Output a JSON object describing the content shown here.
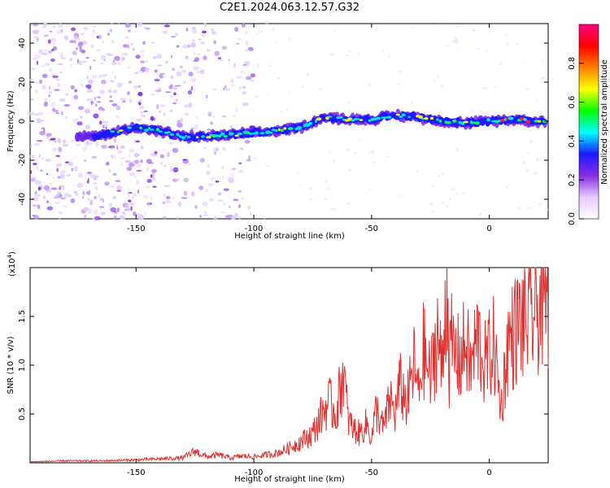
{
  "title": "C2E1.2024.063.12.57.G32",
  "chart_data": [
    {
      "type": "heatmap",
      "xlabel": "Height of straight line (km)",
      "ylabel": "Frequency (Hz)",
      "xlim": [
        -195,
        25
      ],
      "ylim": [
        -50,
        50
      ],
      "x_ticks": [
        -150,
        -100,
        -50,
        0
      ],
      "y_ticks": [
        -40,
        -20,
        0,
        20,
        40
      ],
      "colorbar": {
        "label": "Normalized spectral amplitude",
        "range": [
          0,
          1
        ],
        "ticks": [
          "0.0",
          "0.2",
          "0.4",
          "0.6",
          "0.8"
        ],
        "colors": [
          "#ffffff",
          "#e6ccff",
          "#8a2be2",
          "#1a1aff",
          "#00ffff",
          "#00ff00",
          "#ffff00",
          "#ff8000",
          "#ff0000",
          "#ff0080"
        ]
      },
      "ridge": {
        "x": [
          -168,
          -160,
          -150,
          -140,
          -130,
          -120,
          -110,
          -100,
          -90,
          -80,
          -70,
          -60,
          -50,
          -40,
          -30,
          -20,
          -10,
          0,
          10,
          20,
          24
        ],
        "y": [
          -8,
          -6,
          -3,
          -5,
          -8,
          -8,
          -7,
          -6,
          -5,
          -3,
          2,
          1,
          1,
          3,
          2,
          0,
          -1,
          0,
          1,
          0,
          0
        ]
      },
      "background_noise_x_range": [
        -195,
        -100
      ]
    },
    {
      "type": "line",
      "xlabel": "Height of straight line (km)",
      "ylabel": "SNR (10 * v/v)",
      "y_scale_label": "(x10",
      "y_scale_exp": "4",
      "y_scale_close": ")",
      "xlim": [
        -195,
        25
      ],
      "ylim": [
        0,
        2.0
      ],
      "x_ticks": [
        -150,
        -100,
        -50,
        0
      ],
      "y_ticks": [
        0.5,
        1.0,
        1.5
      ],
      "line_color": "#e03030",
      "series": [
        {
          "x": [
            -195,
            -180,
            -165,
            -150,
            -140,
            -130,
            -125,
            -120,
            -115,
            -110,
            -105,
            -100,
            -95,
            -90,
            -85,
            -80,
            -75,
            -72,
            -70,
            -68,
            -65,
            -62,
            -60,
            -58,
            -55,
            -52,
            -50,
            -48,
            -45,
            -42,
            -40,
            -38,
            -35,
            -32,
            -30,
            -28,
            -25,
            -22,
            -20,
            -18,
            -17,
            -16,
            -15,
            -12,
            -10,
            -8,
            -5,
            -2,
            0,
            2,
            5,
            8,
            10,
            12,
            15,
            18,
            20,
            22,
            25
          ],
          "y": [
            0.01,
            0.02,
            0.02,
            0.03,
            0.04,
            0.05,
            0.12,
            0.06,
            0.08,
            0.05,
            0.07,
            0.06,
            0.08,
            0.1,
            0.15,
            0.22,
            0.3,
            0.45,
            0.55,
            0.62,
            0.5,
            0.95,
            0.45,
            0.35,
            0.3,
            0.4,
            0.25,
            0.55,
            0.35,
            0.65,
            0.5,
            0.8,
            0.6,
            1.0,
            0.7,
            1.15,
            0.85,
            1.35,
            0.9,
            1.95,
            1.0,
            1.2,
            1.1,
            1.05,
            1.25,
            0.95,
            1.3,
            1.0,
            1.1,
            1.2,
            0.55,
            1.25,
            1.3,
            1.4,
            1.45,
            1.5,
            1.55,
            1.65,
            1.7
          ]
        }
      ]
    }
  ]
}
